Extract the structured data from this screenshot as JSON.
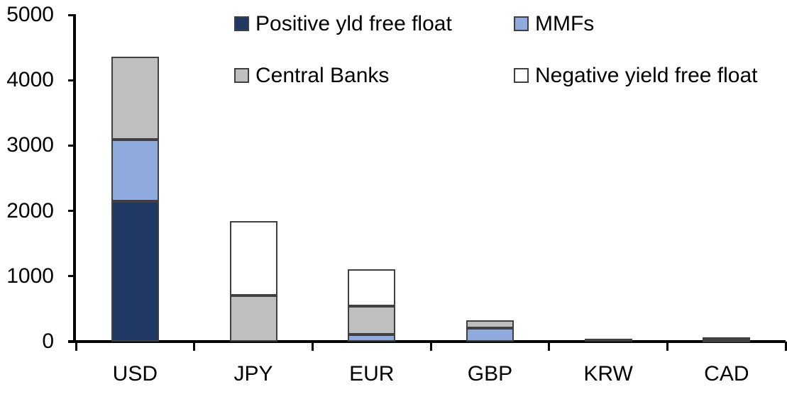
{
  "chart_data": {
    "type": "bar",
    "stacked": true,
    "title": "",
    "xlabel": "",
    "ylabel": "",
    "categories": [
      "USD",
      "JPY",
      "EUR",
      "GBP",
      "KRW",
      "CAD"
    ],
    "series": [
      {
        "name": "Positive yld free float",
        "color": "#1F3864",
        "values": [
          2150,
          0,
          0,
          0,
          45,
          30
        ]
      },
      {
        "name": "MMFs",
        "color": "#8FAADC",
        "values": [
          940,
          0,
          110,
          210,
          0,
          0
        ]
      },
      {
        "name": "Central Banks",
        "color": "#BFBFBF",
        "values": [
          1275,
          700,
          430,
          120,
          0,
          40
        ]
      },
      {
        "name": "Negative yield free float",
        "color": "#FFFFFF",
        "values": [
          0,
          1140,
          570,
          0,
          0,
          0
        ]
      }
    ],
    "stack_order_bottom_to_top": [
      "Positive yld free float",
      "MMFs",
      "Central Banks",
      "Negative yield free float"
    ],
    "totals": [
      4365,
      1840,
      1110,
      330,
      45,
      70
    ],
    "ylim": [
      0,
      5000
    ],
    "yticks": [
      0,
      1000,
      2000,
      3000,
      4000,
      5000
    ],
    "grid": false,
    "legend_position": "top",
    "axis_color": "#000000",
    "segment_border_color": "#404040"
  }
}
